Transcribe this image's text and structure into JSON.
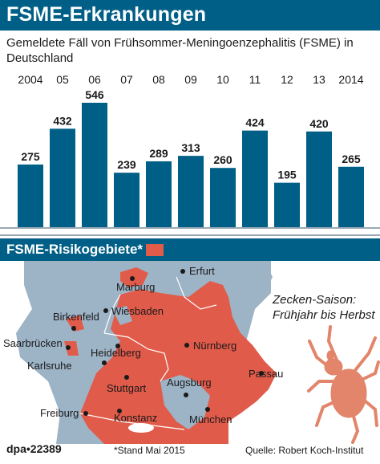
{
  "header": {
    "title": "FSME-Erkrankungen"
  },
  "subtitle": "Gemeldete Fäll von Frühsommer-Meningoenzephalitis (FSME) in Deutschland",
  "chart_data": {
    "type": "bar",
    "categories": [
      "2004",
      "05",
      "06",
      "07",
      "08",
      "09",
      "10",
      "11",
      "12",
      "13",
      "2014"
    ],
    "values": [
      275,
      432,
      546,
      239,
      289,
      313,
      260,
      424,
      195,
      420,
      265
    ],
    "ylim": [
      0,
      546
    ],
    "grid": false,
    "colors": {
      "bar": "#005f86",
      "grid": "#9aa8b4",
      "labels": "#1a1a1a"
    }
  },
  "map": {
    "section_title": "FSME-Risikogebiete*",
    "legend_color": "#e15b4a",
    "colors": {
      "risk": "#e15b4a",
      "other": "#9db3c6",
      "water": "#ffffff",
      "border": "#ffffff"
    },
    "cities": [
      {
        "name": "Erfurt"
      },
      {
        "name": "Marburg"
      },
      {
        "name": "Birkenfeld"
      },
      {
        "name": "Wiesbaden"
      },
      {
        "name": "Saarbrücken"
      },
      {
        "name": "Heidelberg"
      },
      {
        "name": "Nürnberg"
      },
      {
        "name": "Karlsruhe"
      },
      {
        "name": "Passau"
      },
      {
        "name": "Stuttgart"
      },
      {
        "name": "Augsburg"
      },
      {
        "name": "Freiburg"
      },
      {
        "name": "Konstanz"
      },
      {
        "name": "München"
      }
    ]
  },
  "season_note": "Zecken-Saison: Frühjahr bis Herbst",
  "footer": {
    "agency": "dpa•22389",
    "note": "*Stand Mai 2015",
    "source": "Quelle: Robert Koch-Institut"
  }
}
